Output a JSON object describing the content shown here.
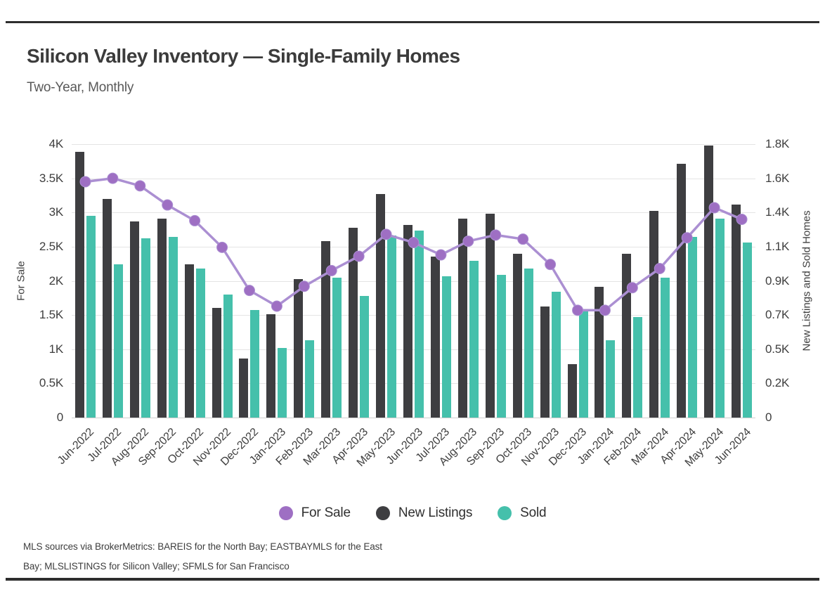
{
  "page": {
    "title": "Silicon Valley Inventory — Single-Family Homes",
    "subtitle": "Two-Year, Monthly",
    "source_line1": "MLS sources via BrokerMetrics: BAREIS for the North Bay; EASTBAYMLS for the East",
    "source_line2": "Bay; MLSLISTINGS for Silicon Valley; SFMLS for San Francisco"
  },
  "chart_data": {
    "type": "combo-bar-line",
    "title": "Silicon Valley Inventory — Single-Family Homes",
    "subtitle": "Two-Year, Monthly",
    "grid": "horizontal-only",
    "legend_position": "bottom-center",
    "categories": [
      "Jun-2022",
      "Jul-2022",
      "Aug-2022",
      "Sep-2022",
      "Oct-2022",
      "Nov-2022",
      "Dec-2022",
      "Jan-2023",
      "Feb-2023",
      "Mar-2023",
      "Apr-2023",
      "May-2023",
      "Jun-2023",
      "Jul-2023",
      "Aug-2023",
      "Sep-2023",
      "Oct-2023",
      "Nov-2023",
      "Dec-2023",
      "Jan-2024",
      "Feb-2024",
      "Mar-2024",
      "Apr-2024",
      "May-2024",
      "Jun-2024"
    ],
    "left_axis": {
      "label": "For Sale",
      "min": 0,
      "max": 4000,
      "ticks": [
        "4K",
        "3.5K",
        "3K",
        "2.5K",
        "2K",
        "1.5K",
        "1K",
        "0.5K",
        "0"
      ]
    },
    "right_axis": {
      "label": "New Listings and Sold Homes",
      "min": 0,
      "max": 1800,
      "ticks": [
        "1.8K",
        "1.6K",
        "1.4K",
        "1.1K",
        "0.9K",
        "0.7K",
        "0.5K",
        "0.2K",
        "0"
      ]
    },
    "series": [
      {
        "name": "For Sale",
        "type": "line",
        "axis": "left",
        "color": "#9e6fc3",
        "line_color": "#ab8fd2",
        "values": [
          3450,
          3500,
          3390,
          3110,
          2880,
          2490,
          1860,
          1630,
          1920,
          2150,
          2360,
          2680,
          2560,
          2380,
          2580,
          2670,
          2610,
          2240,
          1570,
          1570,
          1900,
          2180,
          2630,
          3070,
          2900
        ]
      },
      {
        "name": "New Listings",
        "type": "bar",
        "axis": "right",
        "color": "#3e3e41",
        "values": [
          1750,
          1440,
          1290,
          1310,
          1010,
          720,
          390,
          680,
          910,
          1160,
          1250,
          1470,
          1270,
          1060,
          1310,
          1340,
          1080,
          730,
          350,
          860,
          1080,
          1360,
          1670,
          1790,
          1400
        ]
      },
      {
        "name": "Sold",
        "type": "bar",
        "axis": "right",
        "color": "#45c0ab",
        "values": [
          1330,
          1010,
          1180,
          1190,
          980,
          810,
          710,
          460,
          510,
          920,
          800,
          1200,
          1230,
          930,
          1030,
          940,
          980,
          830,
          700,
          510,
          660,
          920,
          1190,
          1310,
          1150
        ]
      }
    ]
  }
}
